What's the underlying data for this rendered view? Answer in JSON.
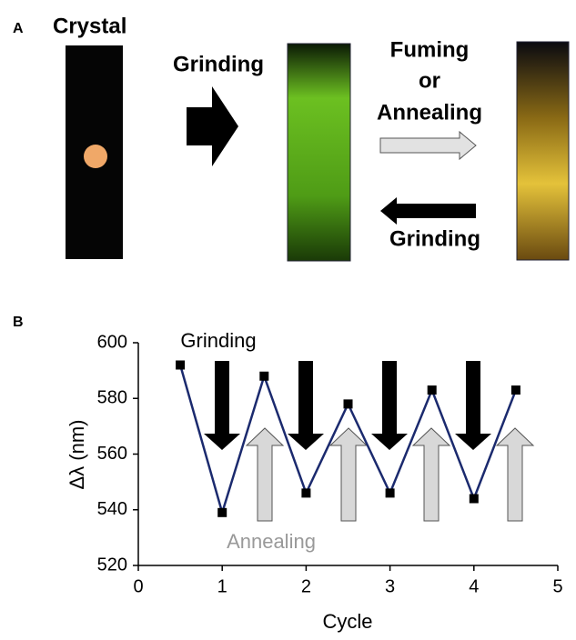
{
  "panel_a": {
    "label": "A",
    "crystal": "Crystal",
    "grinding_1": "Grinding",
    "fuming": "Fuming",
    "or": "or",
    "annealing": "Annealing",
    "grinding_2": "Grinding"
  },
  "chart_data": {
    "type": "line",
    "panel_label": "B",
    "x": [
      0.5,
      1,
      1.5,
      2,
      2.5,
      3,
      3.5,
      4,
      4.5
    ],
    "values": [
      592,
      539,
      588,
      546,
      578,
      546,
      583,
      544,
      583
    ],
    "color": "#1b2a6e",
    "marker_color": "#000000",
    "xlabel": "Cycle",
    "ylabel": "Δλ (nm)",
    "annotations": [
      "Grinding",
      "Annealing"
    ],
    "xlim": [
      0,
      5
    ],
    "xticks": [
      0,
      1,
      2,
      3,
      4,
      5
    ],
    "ylim": [
      520,
      600
    ],
    "yticks": [
      520,
      540,
      560,
      580,
      600
    ]
  }
}
